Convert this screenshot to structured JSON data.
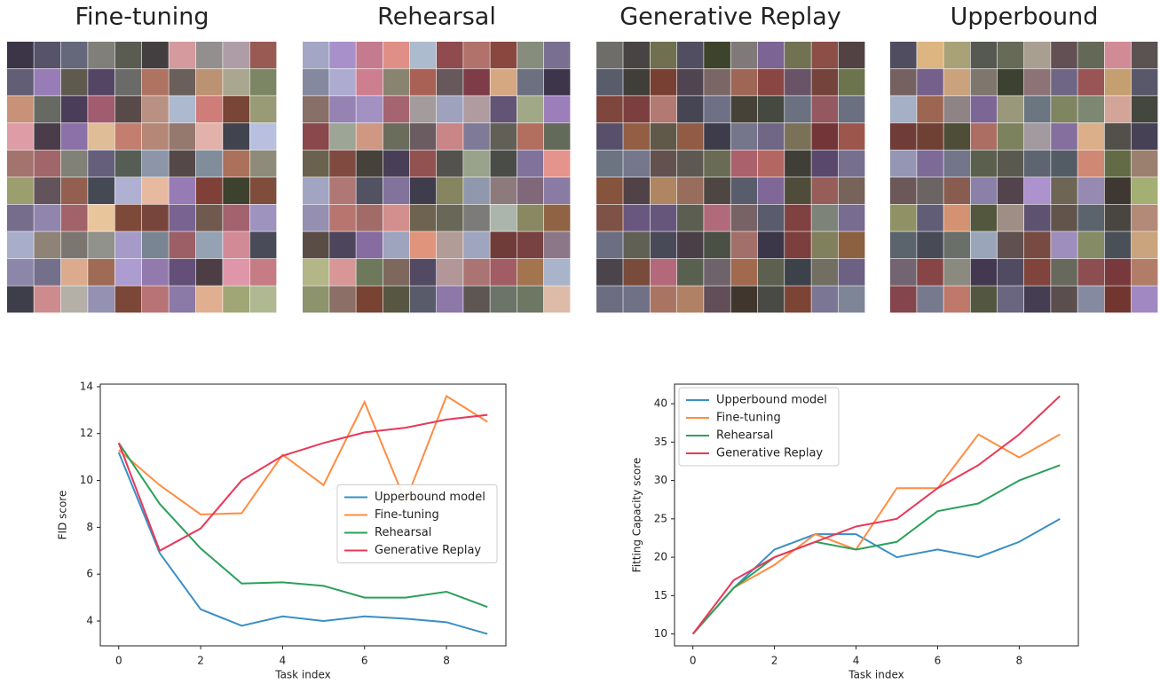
{
  "image_grids": [
    {
      "title": "Fine-tuning"
    },
    {
      "title": "Rehearsal"
    },
    {
      "title": "Generative Replay"
    },
    {
      "title": "Upperbound"
    }
  ],
  "chart_data": [
    {
      "type": "line",
      "xlabel": "Task index",
      "ylabel": "FID score",
      "x": [
        0,
        1,
        2,
        3,
        4,
        5,
        6,
        7,
        8,
        9
      ],
      "xlim": [
        -0.45,
        9.45
      ],
      "xticks": [
        0,
        2,
        4,
        6,
        8
      ],
      "ylim": [
        2.94,
        14.11
      ],
      "yticks": [
        4,
        6,
        8,
        10,
        12,
        14
      ],
      "legend": "center right",
      "series": [
        {
          "name": "Upperbound model",
          "color": "#3a8fc4",
          "values": [
            11.2,
            6.9,
            4.5,
            3.8,
            4.2,
            4.0,
            4.2,
            4.1,
            3.95,
            3.45
          ]
        },
        {
          "name": "Fine-tuning",
          "color": "#ff8c42",
          "values": [
            11.3,
            9.8,
            8.55,
            8.6,
            11.1,
            9.8,
            13.35,
            9.1,
            13.6,
            12.5
          ]
        },
        {
          "name": "Rehearsal",
          "color": "#2ca05a",
          "values": [
            11.6,
            9.0,
            7.1,
            5.6,
            5.65,
            5.5,
            5.0,
            5.0,
            5.25,
            4.6
          ]
        },
        {
          "name": "Generative Replay",
          "color": "#e8385a",
          "values": [
            11.6,
            7.0,
            7.95,
            10.0,
            11.05,
            11.6,
            12.05,
            12.25,
            12.6,
            12.8
          ]
        }
      ]
    },
    {
      "type": "line",
      "xlabel": "Task index",
      "ylabel": "Fitting Capacity score",
      "x": [
        0,
        1,
        2,
        3,
        4,
        5,
        6,
        7,
        8,
        9
      ],
      "xlim": [
        -0.45,
        9.45
      ],
      "xticks": [
        0,
        2,
        4,
        6,
        8
      ],
      "ylim": [
        8.45,
        42.55
      ],
      "yticks": [
        10,
        15,
        20,
        25,
        30,
        35,
        40
      ],
      "legend": "upper left",
      "series": [
        {
          "name": "Upperbound model",
          "color": "#3a8fc4",
          "values": [
            10,
            16,
            21,
            23,
            23,
            20,
            21,
            20,
            22,
            25
          ]
        },
        {
          "name": "Fine-tuning",
          "color": "#ff8c42",
          "values": [
            10,
            16,
            19,
            23,
            21,
            29,
            29,
            36,
            33,
            36
          ]
        },
        {
          "name": "Rehearsal",
          "color": "#2ca05a",
          "values": [
            10,
            16,
            20,
            22,
            21,
            22,
            26,
            27,
            30,
            32
          ]
        },
        {
          "name": "Generative Replay",
          "color": "#e8385a",
          "values": [
            10,
            17,
            20,
            22,
            24,
            25,
            29,
            32,
            36,
            41
          ]
        }
      ]
    }
  ]
}
